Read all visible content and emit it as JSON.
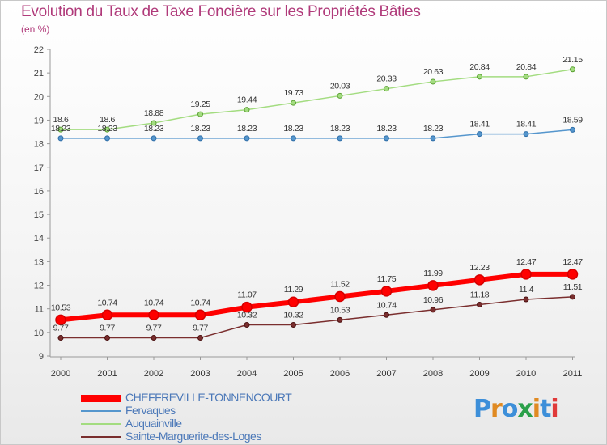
{
  "title": "Evolution du Taux de Taxe Foncière sur les Propriétés Bâties",
  "unit_label": "(en %)",
  "logo": {
    "text": "Proxiti",
    "letter_colors": [
      "#3d8fd9",
      "#e08a22",
      "#3d8fd9",
      "#2ba04a",
      "#e08a22",
      "#3d8fd9",
      "#e03a3a"
    ]
  },
  "chart_data": {
    "type": "line",
    "title": "Evolution du Taux de Taxe Foncière sur les Propriétés Bâties",
    "ylabel": "(en %)",
    "x": [
      "2000",
      "2001",
      "2002",
      "2003",
      "2004",
      "2005",
      "2006",
      "2007",
      "2008",
      "2009",
      "2010",
      "2011"
    ],
    "ylim": [
      9,
      22
    ],
    "yticks": [
      "9",
      "10",
      "11",
      "12",
      "13",
      "14",
      "15",
      "16",
      "17",
      "18",
      "19",
      "20",
      "21",
      "22"
    ],
    "grid": false,
    "legend_position": "bottom-left",
    "series": [
      {
        "name": "CHEFFREVILLE-TONNENCOURT",
        "color": "#ff0000",
        "values": [
          10.53,
          10.74,
          10.74,
          10.74,
          11.07,
          11.29,
          11.52,
          11.75,
          11.99,
          12.23,
          12.47,
          12.47
        ],
        "labels": [
          "10.53",
          "10.74",
          "10.74",
          "10.74",
          "11.07",
          "11.29",
          "11.52",
          "11.75",
          "11.99",
          "12.23",
          "12.47",
          "12.47"
        ]
      },
      {
        "name": "Fervaques",
        "color": "#5596cd",
        "values": [
          18.23,
          18.23,
          18.23,
          18.23,
          18.23,
          18.23,
          18.23,
          18.23,
          18.23,
          18.41,
          18.41,
          18.59
        ],
        "labels": [
          "18.23",
          "18.23",
          "18.23",
          "18.23",
          "18.23",
          "18.23",
          "18.23",
          "18.23",
          "18.23",
          "18.41",
          "18.41",
          "18.59"
        ]
      },
      {
        "name": "Auquainville",
        "color": "#a3dc80",
        "values": [
          18.6,
          18.6,
          18.88,
          19.25,
          19.44,
          19.73,
          20.03,
          20.33,
          20.63,
          20.84,
          20.84,
          21.15
        ],
        "labels": [
          "18.6",
          "18.6",
          "18.88",
          "19.25",
          "19.44",
          "19.73",
          "20.03",
          "20.33",
          "20.63",
          "20.84",
          "20.84",
          "21.15"
        ]
      },
      {
        "name": "Sainte-Marguerite-des-Loges",
        "color": "#7a2e2e",
        "values": [
          9.77,
          9.77,
          9.77,
          9.77,
          10.32,
          10.32,
          10.53,
          10.74,
          10.96,
          11.18,
          11.4,
          11.51
        ],
        "labels": [
          "9.77",
          "9.77",
          "9.77",
          "9.77",
          "10.32",
          "10.32",
          "10.53",
          "10.74",
          "10.96",
          "11.18",
          "11.4",
          "11.51"
        ]
      }
    ]
  }
}
